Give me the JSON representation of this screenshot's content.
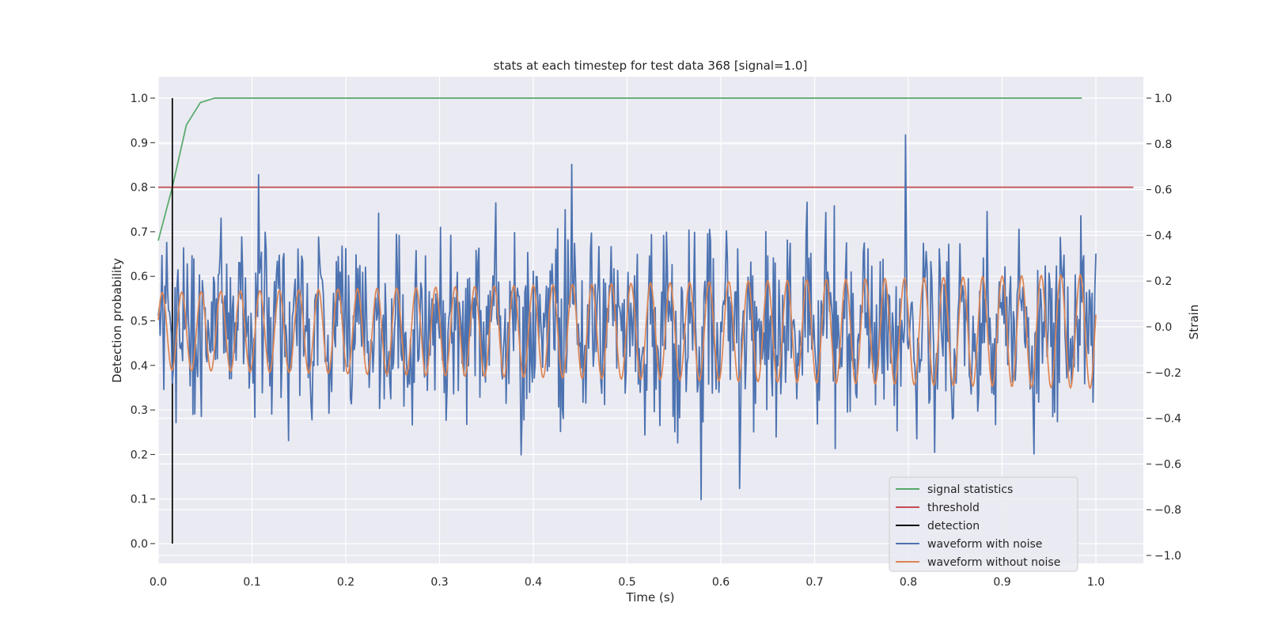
{
  "chart_data": {
    "type": "line",
    "title": "stats at each timestep for test data 368 [signal=1.0]",
    "xlabel": "Time (s)",
    "ylabel_left": "Detection probability",
    "ylabel_right": "Strain",
    "xlim": [
      0.0,
      1.05
    ],
    "ylim_left": [
      -0.05,
      1.05
    ],
    "ylim_right": [
      -1.05,
      1.1
    ],
    "xticks": [
      "0.0",
      "0.1",
      "0.2",
      "0.3",
      "0.4",
      "0.5",
      "0.6",
      "0.7",
      "0.8",
      "0.9",
      "1.0"
    ],
    "yticks_left": [
      "0.0",
      "0.1",
      "0.2",
      "0.3",
      "0.4",
      "0.5",
      "0.6",
      "0.7",
      "0.8",
      "0.9",
      "1.0"
    ],
    "yticks_right": [
      "−1.0",
      "−0.8",
      "−0.6",
      "−0.4",
      "−0.2",
      "0.0",
      "0.2",
      "0.4",
      "0.6",
      "0.8",
      "1.0"
    ],
    "grid": true,
    "legend_position": "lower-right",
    "series": [
      {
        "name": "signal statistics",
        "axis": "left",
        "color": "#55a868",
        "x": [
          0.0,
          0.015,
          0.03,
          0.045,
          0.06,
          0.075,
          0.1,
          0.5,
          0.985
        ],
        "y": [
          0.68,
          0.8,
          0.94,
          0.99,
          1.0,
          1.0,
          1.0,
          1.0,
          1.0
        ]
      },
      {
        "name": "threshold",
        "axis": "left",
        "color": "#c44e52",
        "x": [
          0.0,
          1.04
        ],
        "y": [
          0.8,
          0.8
        ]
      },
      {
        "name": "detection",
        "axis": "left",
        "color": "#000000",
        "x": [
          0.015,
          0.015
        ],
        "y": [
          0.0,
          1.0
        ]
      },
      {
        "name": "waveform with noise",
        "axis": "right",
        "color": "#4c72b0",
        "note_generation": "noisy strain samples, values in strain units",
        "x_start": 0.0,
        "x_end": 1.0,
        "y": []
      },
      {
        "name": "waveform without noise",
        "axis": "right",
        "color": "#dd8452",
        "x_start": 0.0,
        "x_end": 1.0,
        "frequency_hz": 48,
        "amplitude_start": 0.17,
        "amplitude_end": 0.25,
        "y": []
      }
    ],
    "legend": [
      {
        "label": "signal statistics",
        "color": "#55a868"
      },
      {
        "label": "threshold",
        "color": "#c44e52"
      },
      {
        "label": "detection",
        "color": "#000000"
      },
      {
        "label": "waveform with noise",
        "color": "#4c72b0"
      },
      {
        "label": "waveform without noise",
        "color": "#dd8452"
      }
    ]
  }
}
